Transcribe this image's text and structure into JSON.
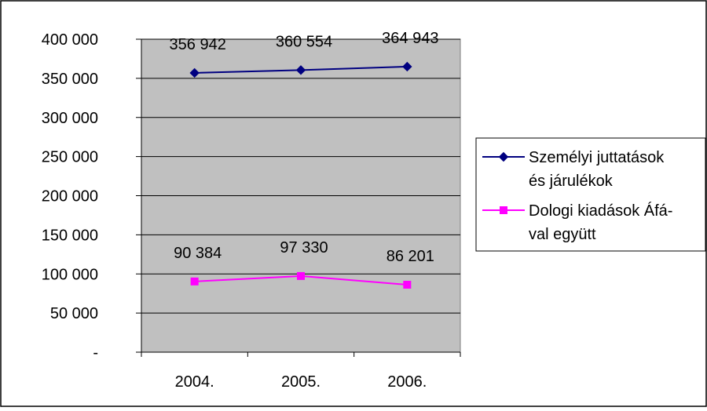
{
  "chart_data": {
    "type": "line",
    "categories": [
      "2004.",
      "2005.",
      "2006."
    ],
    "series": [
      {
        "name": "Személyi juttatások és járulékok",
        "name_lines": [
          "Személyi juttatások",
          "és járulékok"
        ],
        "values": [
          356942,
          360554,
          364943
        ],
        "value_labels": [
          "356 942",
          "360 554",
          "364 943"
        ],
        "color": "#000080",
        "marker": "diamond"
      },
      {
        "name": "Dologi kiadások Áfával együtt",
        "name_lines": [
          "Dologi kiadások Áfá-",
          "val együtt"
        ],
        "values": [
          90384,
          97330,
          86201
        ],
        "value_labels": [
          "90 384",
          "97 330",
          "86 201"
        ],
        "color": "#FF00FF",
        "marker": "square"
      }
    ],
    "ylim": [
      0,
      400000
    ],
    "yticks": [
      0,
      50000,
      100000,
      150000,
      200000,
      250000,
      300000,
      350000,
      400000
    ],
    "ytick_labels": [
      "-",
      "50 000",
      "100 000",
      "150 000",
      "200 000",
      "250 000",
      "300 000",
      "350 000",
      "400 000"
    ],
    "grid": true,
    "plot_background": "#C0C0C0",
    "legend_position": "right",
    "title": "",
    "xlabel": "",
    "ylabel": ""
  }
}
